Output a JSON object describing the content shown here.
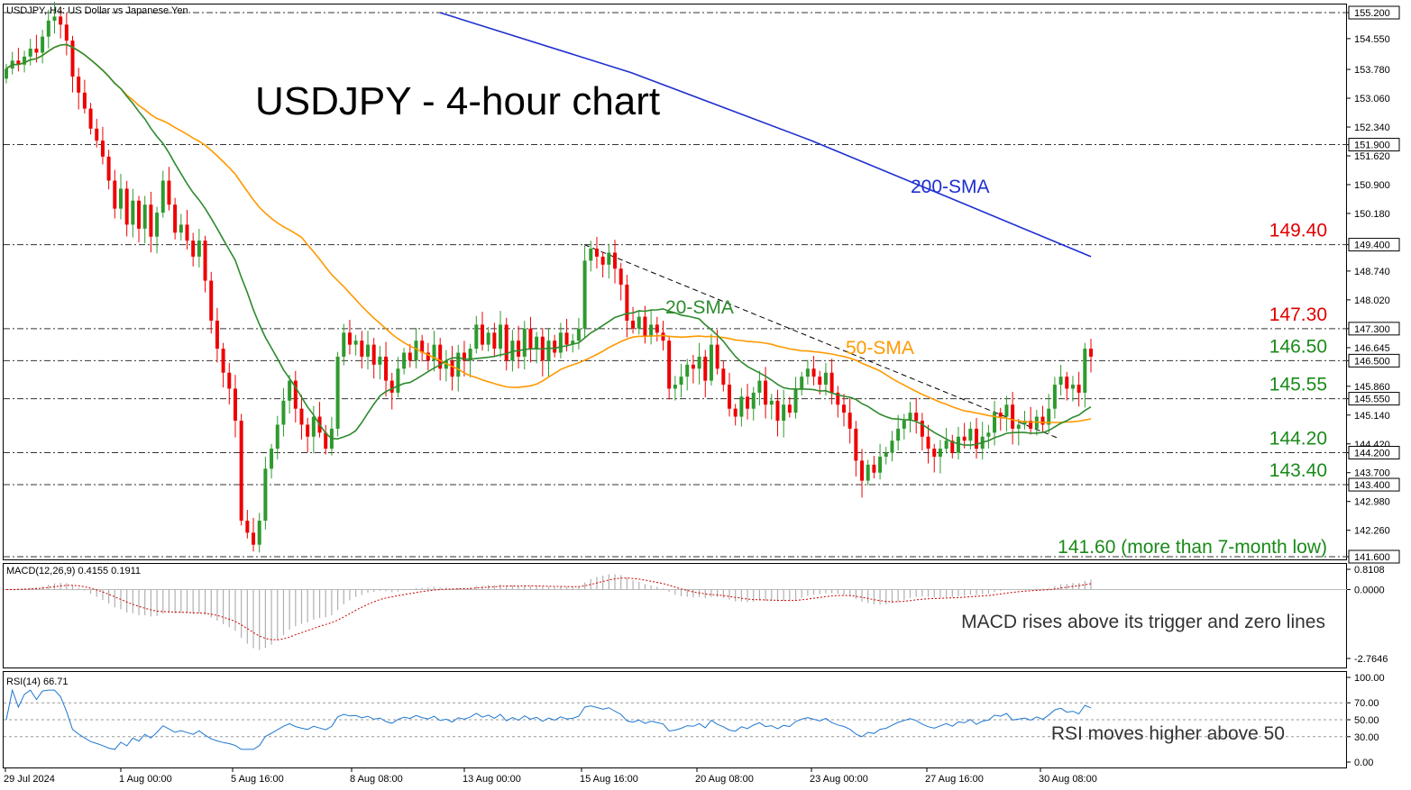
{
  "header": {
    "symbol_info": "USDJPY, H4:  US Dollar vs Japanese Yen",
    "macd_info": "MACD(12,26,9) 0.4155 0.1911",
    "rsi_info": "RSI(14) 66.71"
  },
  "annotations": {
    "title": "USDJPY - 4-hour chart",
    "sma200": "200-SMA",
    "sma20": "20-SMA",
    "sma50": "50-SMA",
    "macd_note": "MACD rises above its trigger and zero lines",
    "rsi_note": "RSI moves higher above 50"
  },
  "colors": {
    "bull": "#2e9a2e",
    "bear": "#ee0000",
    "sma20": "#2e8b2e",
    "sma50": "#ff9900",
    "sma200": "#1e2fd0",
    "macd_hist": "#b0b0b0",
    "macd_signal": "#cc0000",
    "rsi": "#1f77d0",
    "level_red": "#e00000",
    "level_green": "#1a8a1a"
  },
  "price_axis": {
    "min": 141.6,
    "max": 155.2,
    "ticks": [
      "155.200",
      "154.550",
      "153.780",
      "153.060",
      "152.340",
      "151.900",
      "151.620",
      "150.900",
      "150.180",
      "149.400",
      "148.740",
      "148.020",
      "147.300",
      "146.500",
      "145.860",
      "145.550",
      "145.140",
      "144.420",
      "144.200",
      "143.700",
      "143.400",
      "142.980",
      "142.260",
      "141.600"
    ]
  },
  "levels": [
    {
      "value": 155.2,
      "label": ""
    },
    {
      "value": 151.9,
      "label": ""
    },
    {
      "value": 149.4,
      "label": "149.40",
      "color": "red"
    },
    {
      "value": 147.3,
      "label": "147.30",
      "color": "red"
    },
    {
      "value": 146.5,
      "label": "146.50",
      "color": "green"
    },
    {
      "value": 145.55,
      "label": "145.55",
      "color": "green"
    },
    {
      "value": 144.2,
      "label": "144.20",
      "color": "green"
    },
    {
      "value": 143.4,
      "label": "143.40",
      "color": "green"
    },
    {
      "value": 141.6,
      "label": "141.60 (more than 7-month low)",
      "color": "green"
    }
  ],
  "current_price": "146.645",
  "time_axis": [
    "29 Jul 2024",
    "1 Aug 00:00",
    "5 Aug 16:00",
    "8 Aug 08:00",
    "13 Aug 00:00",
    "15 Aug 16:00",
    "20 Aug 08:00",
    "23 Aug 00:00",
    "27 Aug 16:00",
    "30 Aug 08:00"
  ],
  "macd_axis": {
    "min": -2.7646,
    "max": 0.8108,
    "ticks": [
      "0.8108",
      "0.0000",
      "-2.7646"
    ]
  },
  "rsi_axis": {
    "min": 0,
    "max": 100,
    "ticks": [
      "100.00",
      "70.00",
      "50.00",
      "30.00",
      "0.00"
    ]
  },
  "chart_data": {
    "type": "candlestick",
    "title": "USDJPY - 4-hour chart",
    "timeframe": "H4",
    "price_close": [
      153.8,
      154.0,
      153.9,
      154.1,
      154.3,
      154.2,
      154.6,
      155.0,
      155.1,
      154.9,
      154.5,
      153.6,
      153.2,
      152.8,
      152.3,
      152.0,
      151.6,
      151.0,
      150.3,
      150.8,
      149.9,
      150.5,
      149.8,
      150.4,
      149.6,
      150.2,
      151.0,
      150.4,
      149.7,
      149.9,
      149.5,
      149.1,
      149.5,
      148.5,
      147.5,
      146.8,
      146.2,
      145.8,
      145.0,
      142.5,
      142.2,
      141.9,
      142.5,
      143.8,
      144.3,
      144.9,
      145.5,
      146.0,
      145.3,
      144.9,
      144.6,
      145.1,
      144.7,
      144.3,
      144.8,
      146.6,
      147.2,
      146.9,
      147.0,
      146.6,
      146.9,
      146.4,
      146.6,
      146.0,
      145.7,
      146.3,
      146.7,
      146.5,
      147.0,
      146.7,
      146.5,
      146.9,
      146.3,
      146.5,
      146.1,
      146.7,
      146.5,
      146.8,
      147.4,
      146.9,
      147.2,
      146.8,
      147.4,
      146.5,
      147.0,
      146.6,
      147.3,
      146.8,
      147.1,
      146.5,
      147.0,
      146.7,
      147.2,
      146.9,
      147.0,
      147.3,
      149.0,
      149.3,
      149.1,
      148.9,
      149.2,
      148.8,
      148.4,
      147.5,
      147.3,
      147.6,
      147.1,
      147.4,
      147.2,
      147.0,
      145.8,
      145.9,
      146.1,
      146.4,
      146.3,
      146.6,
      146.0,
      146.9,
      146.3,
      145.9,
      145.3,
      145.1,
      145.6,
      145.3,
      145.7,
      146.0,
      145.4,
      145.5,
      145.0,
      145.4,
      145.2,
      145.8,
      146.1,
      146.3,
      146.1,
      145.9,
      146.2,
      145.7,
      145.4,
      145.2,
      144.8,
      144.0,
      143.5,
      143.9,
      143.7,
      144.1,
      144.2,
      144.5,
      144.8,
      145.0,
      145.2,
      145.0,
      144.6,
      144.3,
      144.1,
      144.3,
      144.5,
      144.2,
      144.6,
      144.5,
      144.8,
      144.3,
      144.6,
      144.7,
      145.2,
      145.1,
      145.4,
      144.8,
      144.9,
      145.0,
      144.8,
      145.1,
      144.9,
      145.3,
      145.9,
      146.1,
      145.8,
      145.9,
      145.7,
      146.8,
      146.6
    ]
  }
}
